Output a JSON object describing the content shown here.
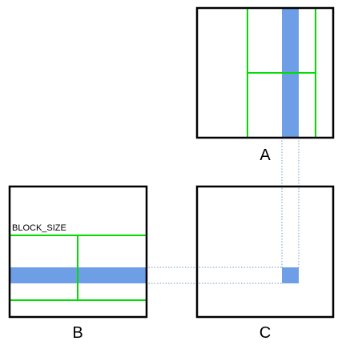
{
  "labels": {
    "matrix_a": "A",
    "matrix_b": "B",
    "matrix_c": "C",
    "block_size": "BLOCK_SIZE"
  },
  "colors": {
    "block_lines": "#00dd00",
    "highlight": "#6d9ee6",
    "guide_lines": "#6b9cc0",
    "frame": "#000000"
  }
}
